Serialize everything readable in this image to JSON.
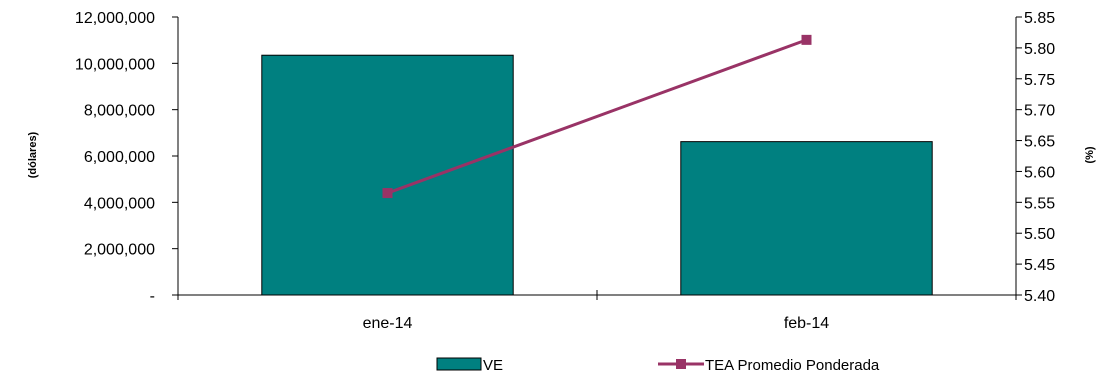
{
  "chart_data": {
    "type": "bar",
    "categories": [
      "ene-14",
      "feb-14"
    ],
    "series": [
      {
        "name": "VE",
        "type": "bar",
        "axis": "left",
        "values": [
          10350000,
          6620000
        ],
        "color": "#008080"
      },
      {
        "name": "TEA Promedio Ponderada",
        "type": "line",
        "axis": "right",
        "values": [
          5.565,
          5.813
        ],
        "color": "#993366"
      }
    ],
    "y_left": {
      "label": "(dólares)",
      "range": [
        0,
        12000000
      ],
      "ticks": [
        0,
        2000000,
        4000000,
        6000000,
        8000000,
        10000000,
        12000000
      ],
      "tick_labels": [
        "-",
        "2,000,000",
        "4,000,000",
        "6,000,000",
        "8,000,000",
        "10,000,000",
        "12,000,000"
      ]
    },
    "y_right": {
      "label": "(%)",
      "range": [
        5.4,
        5.85
      ],
      "ticks": [
        5.4,
        5.45,
        5.5,
        5.55,
        5.6,
        5.65,
        5.7,
        5.75,
        5.8,
        5.85
      ],
      "tick_labels": [
        "5.40",
        "5.45",
        "5.50",
        "5.55",
        "5.60",
        "5.65",
        "5.70",
        "5.75",
        "5.80",
        "5.85"
      ]
    },
    "grid": false,
    "legend": "bottom"
  }
}
